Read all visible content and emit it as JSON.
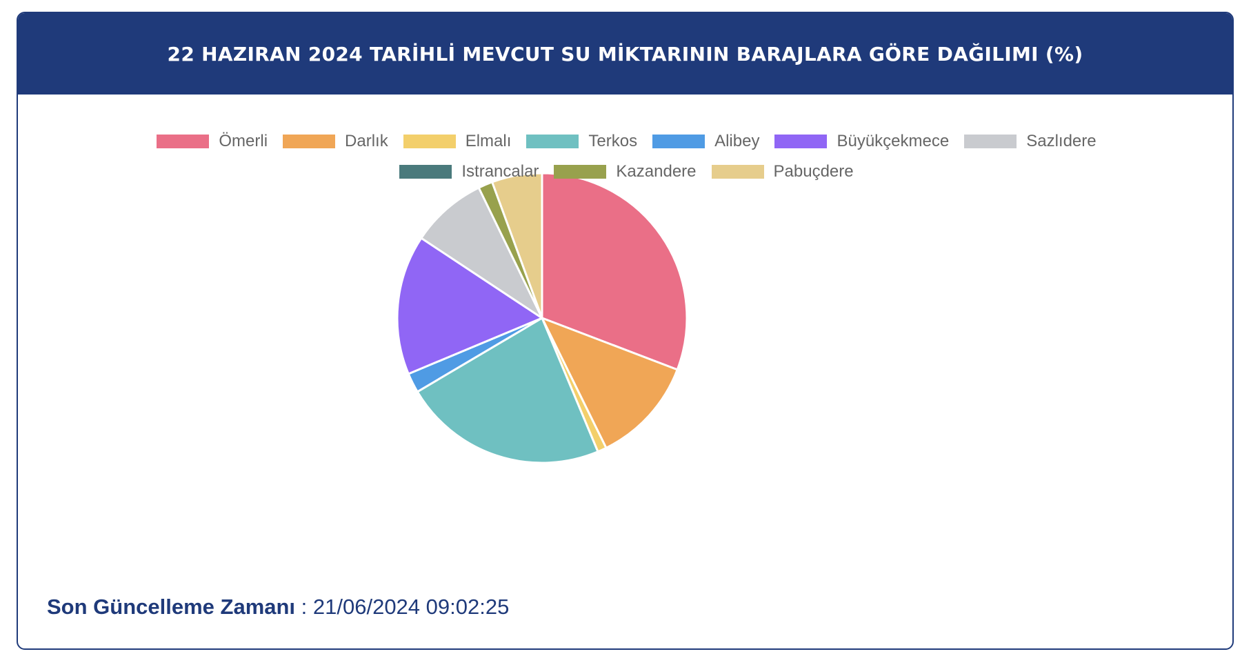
{
  "header": {
    "title": "22 HAZIRAN 2024 TARİHLİ MEVCUT SU MİKTARININ BARAJLARA GÖRE DAĞILIMI (%)"
  },
  "footer": {
    "label": "Son Güncelleme Zamanı",
    "separator": " : ",
    "value": "21/06/2024 09:02:25"
  },
  "chart_data": {
    "type": "pie",
    "title": "22 HAZIRAN 2024 TARİHLİ MEVCUT SU MİKTARININ BARAJLARA GÖRE DAĞILIMI (%)",
    "legend_position": "top",
    "start_angle_deg": -90,
    "slices": [
      {
        "label": "Ömerli",
        "value": 30.8,
        "color": "#ea6f87"
      },
      {
        "label": "Darlık",
        "value": 11.9,
        "color": "#f0a656"
      },
      {
        "label": "Elmalı",
        "value": 1.0,
        "color": "#f3cf6b"
      },
      {
        "label": "Terkos",
        "value": 22.8,
        "color": "#6fc0c1"
      },
      {
        "label": "Alibey",
        "value": 2.2,
        "color": "#4f9be4"
      },
      {
        "label": "Büyükçekmece",
        "value": 15.6,
        "color": "#9066f5"
      },
      {
        "label": "Sazlıdere",
        "value": 8.5,
        "color": "#c9cbcf"
      },
      {
        "label": "Istrancalar",
        "value": 0.0,
        "color": "#4a7a7c"
      },
      {
        "label": "Kazandere",
        "value": 1.6,
        "color": "#98a14d"
      },
      {
        "label": "Pabuçdere",
        "value": 5.6,
        "color": "#e6cd8c"
      }
    ]
  }
}
